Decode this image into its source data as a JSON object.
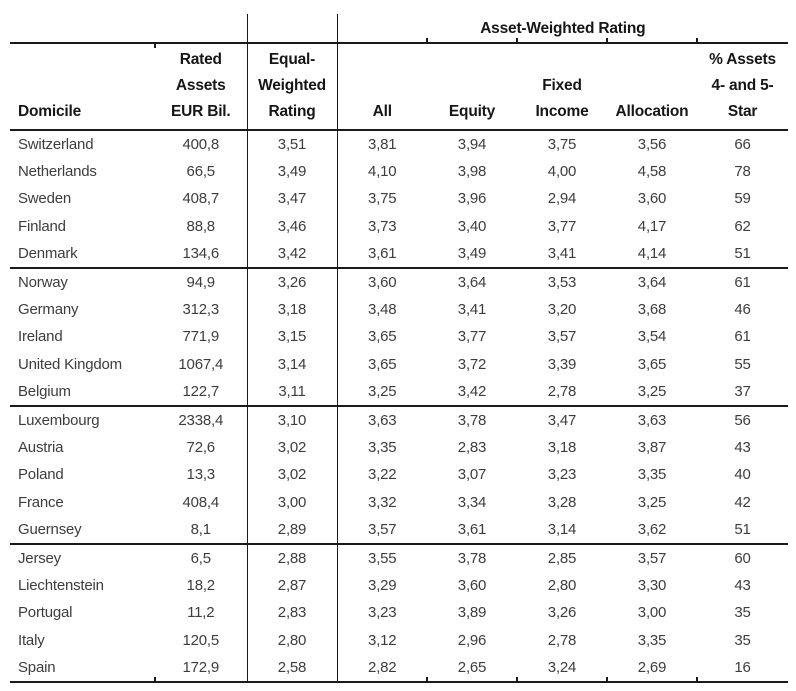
{
  "colors": {
    "background": "#ffffff",
    "rule": "#1a1a1a",
    "header_text": "#161616",
    "body_text": "#3d3d3d"
  },
  "table": {
    "spanner": "Asset-Weighted Rating",
    "header": {
      "domicile": "Domicile",
      "rated_assets_lines": [
        "Rated",
        "Assets",
        "EUR Bil."
      ],
      "equal_weighted_lines": [
        "Equal-",
        "Weighted",
        "Rating"
      ],
      "all": "All",
      "equity": "Equity",
      "fixed_income_lines": [
        "Fixed",
        "Income"
      ],
      "allocation": "Allocation",
      "pct_assets_lines": [
        "% Assets",
        "4- and 5-",
        "Star"
      ]
    },
    "rows": [
      [
        "Switzerland",
        "400,8",
        "3,51",
        "3,81",
        "3,94",
        "3,75",
        "3,56",
        "66"
      ],
      [
        "Netherlands",
        "66,5",
        "3,49",
        "4,10",
        "3,98",
        "4,00",
        "4,58",
        "78"
      ],
      [
        "Sweden",
        "408,7",
        "3,47",
        "3,75",
        "3,96",
        "2,94",
        "3,60",
        "59"
      ],
      [
        "Finland",
        "88,8",
        "3,46",
        "3,73",
        "3,40",
        "3,77",
        "4,17",
        "62"
      ],
      [
        "Denmark",
        "134,6",
        "3,42",
        "3,61",
        "3,49",
        "3,41",
        "4,14",
        "51"
      ],
      [
        "Norway",
        "94,9",
        "3,26",
        "3,60",
        "3,64",
        "3,53",
        "3,64",
        "61"
      ],
      [
        "Germany",
        "312,3",
        "3,18",
        "3,48",
        "3,41",
        "3,20",
        "3,68",
        "46"
      ],
      [
        "Ireland",
        "771,9",
        "3,15",
        "3,65",
        "3,77",
        "3,57",
        "3,54",
        "61"
      ],
      [
        "United Kingdom",
        "1067,4",
        "3,14",
        "3,65",
        "3,72",
        "3,39",
        "3,65",
        "55"
      ],
      [
        "Belgium",
        "122,7",
        "3,11",
        "3,25",
        "3,42",
        "2,78",
        "3,25",
        "37"
      ],
      [
        "Luxembourg",
        "2338,4",
        "3,10",
        "3,63",
        "3,78",
        "3,47",
        "3,63",
        "56"
      ],
      [
        "Austria",
        "72,6",
        "3,02",
        "3,35",
        "2,83",
        "3,18",
        "3,87",
        "43"
      ],
      [
        "Poland",
        "13,3",
        "3,02",
        "3,22",
        "3,07",
        "3,23",
        "3,35",
        "40"
      ],
      [
        "France",
        "408,4",
        "3,00",
        "3,32",
        "3,34",
        "3,28",
        "3,25",
        "42"
      ],
      [
        "Guernsey",
        "8,1",
        "2,89",
        "3,57",
        "3,61",
        "3,14",
        "3,62",
        "51"
      ],
      [
        "Jersey",
        "6,5",
        "2,88",
        "3,55",
        "3,78",
        "2,85",
        "3,57",
        "60"
      ],
      [
        "Liechtenstein",
        "18,2",
        "2,87",
        "3,29",
        "3,60",
        "2,80",
        "3,30",
        "43"
      ],
      [
        "Portugal",
        "11,2",
        "2,83",
        "3,23",
        "3,89",
        "3,26",
        "3,00",
        "35"
      ],
      [
        "Italy",
        "120,5",
        "2,80",
        "3,12",
        "2,96",
        "2,78",
        "3,35",
        "35"
      ],
      [
        "Spain",
        "172,9",
        "2,58",
        "2,82",
        "2,65",
        "3,24",
        "2,69",
        "16"
      ]
    ]
  }
}
